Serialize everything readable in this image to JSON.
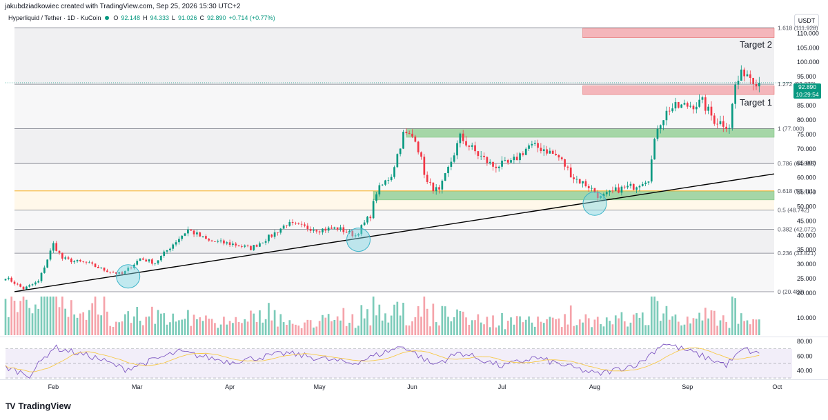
{
  "header": {
    "attribution": "jakubdziadkowiec created with TradingView.com, Sep 25, 2026 15:30 UTC+2",
    "symbol": "Hyperliquid / Tether · 1D · KuCoin",
    "open_label": "O",
    "open": "92.148",
    "high_label": "H",
    "high": "94.333",
    "low_label": "L",
    "low": "91.026",
    "close_label": "C",
    "close": "92.890",
    "change": "+0.714 (+0.77%)",
    "currency": "USDT"
  },
  "price_tag": {
    "price": "92.890",
    "countdown": "10:29:54"
  },
  "brand": {
    "logo": "TV",
    "name": "TradingView"
  },
  "colors": {
    "up": "#089981",
    "down": "#f23645",
    "vol_up": "#7ccbb9",
    "vol_down": "#f5a3aa",
    "rsi": "#7e57c2",
    "rsi_ma": "#f7c948",
    "zone_red": "#f4b6bb",
    "zone_green": "#a5d6a7",
    "fib_618": "#f7a600",
    "circle": "#7fd8e5"
  },
  "chart_data": [
    {
      "type": "candlestick",
      "price_axis": {
        "ticks": [
          "110.000",
          "105.000",
          "100.000",
          "95.000",
          "90.000",
          "85.000",
          "80.000",
          "75.000",
          "70.000",
          "65.000",
          "60.000",
          "55.000",
          "50.000",
          "45.000",
          "40.000",
          "35.000",
          "30.000",
          "25.000",
          "20.000"
        ],
        "ylim": [
          20,
          112
        ]
      },
      "volume_axis": {
        "ticks": [
          "10.000"
        ]
      },
      "time_axis": {
        "labels": [
          "Feb",
          "Mar",
          "Apr",
          "May",
          "Jun",
          "Jul",
          "Aug",
          "Sep",
          "Oct"
        ],
        "range": [
          "2026-01-16",
          "2026-10-06"
        ]
      },
      "fib_levels": [
        {
          "ratio": "0",
          "price": 20.483,
          "label": "0 (20.483)"
        },
        {
          "ratio": "0.236",
          "price": 33.821,
          "label": "0.236 (33.821)"
        },
        {
          "ratio": "0.382",
          "price": 42.072,
          "label": "0.382 (42.072)"
        },
        {
          "ratio": "0.5",
          "price": 48.742,
          "label": "0.5 (48.742)"
        },
        {
          "ratio": "0.618",
          "price": 55.411,
          "label": "0.618 (55.411)"
        },
        {
          "ratio": "0.786",
          "price": 64.905,
          "label": "0.786 (64.905)"
        },
        {
          "ratio": "1",
          "price": 77.0,
          "label": "1 (77.000)"
        },
        {
          "ratio": "1.272",
          "price": 92.373,
          "label": "1.272 (92.373)"
        },
        {
          "ratio": "1.618",
          "price": 111.928,
          "label": "1.618 (111.928)"
        }
      ],
      "fib_range": [
        "2026-01-19",
        "2026-09-30"
      ],
      "zones": [
        {
          "kind": "target",
          "label": "Target 2",
          "from": 108.5,
          "to": 111.8,
          "start": "2026-07-28",
          "end": "2026-09-30"
        },
        {
          "kind": "target",
          "label": "Target 1",
          "from": 88.8,
          "to": 91.8,
          "start": "2026-07-28",
          "end": "2026-09-30"
        },
        {
          "kind": "support",
          "label": "",
          "from": 74.0,
          "to": 77.0,
          "start": "2026-05-30",
          "end": "2026-09-30"
        },
        {
          "kind": "support",
          "label": "",
          "from": 52.3,
          "to": 55.4,
          "start": "2026-05-19",
          "end": "2026-09-30"
        }
      ],
      "trendline": {
        "from": {
          "date": "2026-01-19",
          "price": 20.5
        },
        "to": {
          "date": "2026-09-30",
          "price": 61.3
        }
      },
      "touch_points": [
        {
          "date": "2026-02-26",
          "price": 25.8
        },
        {
          "date": "2026-05-14",
          "price": 38.5
        },
        {
          "date": "2026-08-01",
          "price": 51.0
        }
      ],
      "anchors": [
        {
          "date": "2026-01-16",
          "price": 25.5
        },
        {
          "date": "2026-01-22",
          "price": 21.5
        },
        {
          "date": "2026-01-27",
          "price": 24.0
        },
        {
          "date": "2026-02-01",
          "price": 37.0
        },
        {
          "date": "2026-02-04",
          "price": 32.0
        },
        {
          "date": "2026-02-08",
          "price": 31.0
        },
        {
          "date": "2026-02-12",
          "price": 30.5
        },
        {
          "date": "2026-02-18",
          "price": 28.0
        },
        {
          "date": "2026-02-24",
          "price": 26.5
        },
        {
          "date": "2026-03-02",
          "price": 32.0
        },
        {
          "date": "2026-03-07",
          "price": 30.5
        },
        {
          "date": "2026-03-13",
          "price": 37.0
        },
        {
          "date": "2026-03-18",
          "price": 42.0
        },
        {
          "date": "2026-03-25",
          "price": 38.0
        },
        {
          "date": "2026-04-02",
          "price": 37.0
        },
        {
          "date": "2026-04-08",
          "price": 35.5
        },
        {
          "date": "2026-04-15",
          "price": 40.0
        },
        {
          "date": "2026-04-20",
          "price": 44.0
        },
        {
          "date": "2026-04-25",
          "price": 43.0
        },
        {
          "date": "2026-05-01",
          "price": 42.0
        },
        {
          "date": "2026-05-07",
          "price": 42.5
        },
        {
          "date": "2026-05-13",
          "price": 40.0
        },
        {
          "date": "2026-05-18",
          "price": 47.0
        },
        {
          "date": "2026-05-20",
          "price": 55.0
        },
        {
          "date": "2026-05-25",
          "price": 61.0
        },
        {
          "date": "2026-05-29",
          "price": 75.0
        },
        {
          "date": "2026-06-02",
          "price": 74.0
        },
        {
          "date": "2026-06-06",
          "price": 58.0
        },
        {
          "date": "2026-06-10",
          "price": 55.0
        },
        {
          "date": "2026-06-13",
          "price": 63.0
        },
        {
          "date": "2026-06-17",
          "price": 74.0
        },
        {
          "date": "2026-06-23",
          "price": 68.0
        },
        {
          "date": "2026-06-28",
          "price": 64.0
        },
        {
          "date": "2026-07-04",
          "price": 65.0
        },
        {
          "date": "2026-07-10",
          "price": 71.0
        },
        {
          "date": "2026-07-15",
          "price": 70.0
        },
        {
          "date": "2026-07-20",
          "price": 67.0
        },
        {
          "date": "2026-07-25",
          "price": 60.0
        },
        {
          "date": "2026-07-30",
          "price": 57.0
        },
        {
          "date": "2026-08-03",
          "price": 53.0
        },
        {
          "date": "2026-08-09",
          "price": 56.0
        },
        {
          "date": "2026-08-14",
          "price": 57.0
        },
        {
          "date": "2026-08-19",
          "price": 60.0
        },
        {
          "date": "2026-08-22",
          "price": 78.0
        },
        {
          "date": "2026-08-26",
          "price": 84.0
        },
        {
          "date": "2026-09-01",
          "price": 85.0
        },
        {
          "date": "2026-09-06",
          "price": 86.0
        },
        {
          "date": "2026-09-10",
          "price": 80.0
        },
        {
          "date": "2026-09-15",
          "price": 78.0
        },
        {
          "date": "2026-09-17",
          "price": 92.0
        },
        {
          "date": "2026-09-20",
          "price": 97.0
        },
        {
          "date": "2026-09-25",
          "price": 92.9
        }
      ]
    },
    {
      "type": "line",
      "name": "RSI",
      "axis": {
        "ticks": [
          "80.00",
          "60.00",
          "40.00"
        ],
        "ylim": [
          31,
          83
        ],
        "bands": [
          70,
          50,
          30
        ]
      },
      "anchors": [
        {
          "date": "2026-01-16",
          "value": 45
        },
        {
          "date": "2026-01-24",
          "value": 34
        },
        {
          "date": "2026-02-01",
          "value": 72
        },
        {
          "date": "2026-02-15",
          "value": 58
        },
        {
          "date": "2026-02-25",
          "value": 42
        },
        {
          "date": "2026-03-15",
          "value": 66
        },
        {
          "date": "2026-04-01",
          "value": 52
        },
        {
          "date": "2026-04-20",
          "value": 64
        },
        {
          "date": "2026-05-12",
          "value": 50
        },
        {
          "date": "2026-05-29",
          "value": 74
        },
        {
          "date": "2026-06-08",
          "value": 48
        },
        {
          "date": "2026-06-17",
          "value": 65
        },
        {
          "date": "2026-07-01",
          "value": 46
        },
        {
          "date": "2026-07-12",
          "value": 58
        },
        {
          "date": "2026-08-02",
          "value": 35
        },
        {
          "date": "2026-08-16",
          "value": 50
        },
        {
          "date": "2026-08-24",
          "value": 78
        },
        {
          "date": "2026-09-02",
          "value": 66
        },
        {
          "date": "2026-09-14",
          "value": 48
        },
        {
          "date": "2026-09-20",
          "value": 70
        },
        {
          "date": "2026-09-25",
          "value": 62
        }
      ]
    }
  ]
}
